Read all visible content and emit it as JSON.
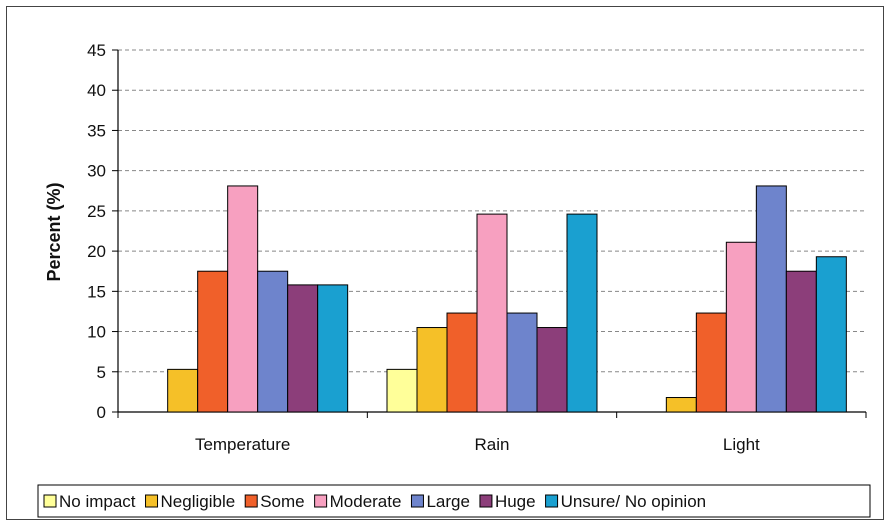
{
  "chart_data": {
    "type": "bar",
    "title": "",
    "xlabel": "",
    "ylabel": "Percent (%)",
    "ylim": [
      0,
      45
    ],
    "yticks": [
      0,
      5,
      10,
      15,
      20,
      25,
      30,
      35,
      40,
      45
    ],
    "grid": true,
    "legend_position": "bottom",
    "categories": [
      "Temperature",
      "Rain",
      "Light"
    ],
    "series": [
      {
        "name": "No impact",
        "color": "#ffff99",
        "values": [
          0,
          5.3,
          0
        ]
      },
      {
        "name": "Negligible",
        "color": "#f5c028",
        "values": [
          5.3,
          10.5,
          1.8
        ]
      },
      {
        "name": "Some",
        "color": "#f0602a",
        "values": [
          17.5,
          12.3,
          12.3
        ]
      },
      {
        "name": "Moderate",
        "color": "#f7a0c0",
        "values": [
          28.1,
          24.6,
          21.1
        ]
      },
      {
        "name": "Large",
        "color": "#6e84cc",
        "values": [
          17.5,
          12.3,
          28.1
        ]
      },
      {
        "name": "Huge",
        "color": "#8c3e7a",
        "values": [
          15.8,
          10.5,
          17.5
        ]
      },
      {
        "name": "Unsure/ No opinion",
        "color": "#1aa0d0",
        "values": [
          15.8,
          24.6,
          19.3
        ]
      }
    ]
  }
}
